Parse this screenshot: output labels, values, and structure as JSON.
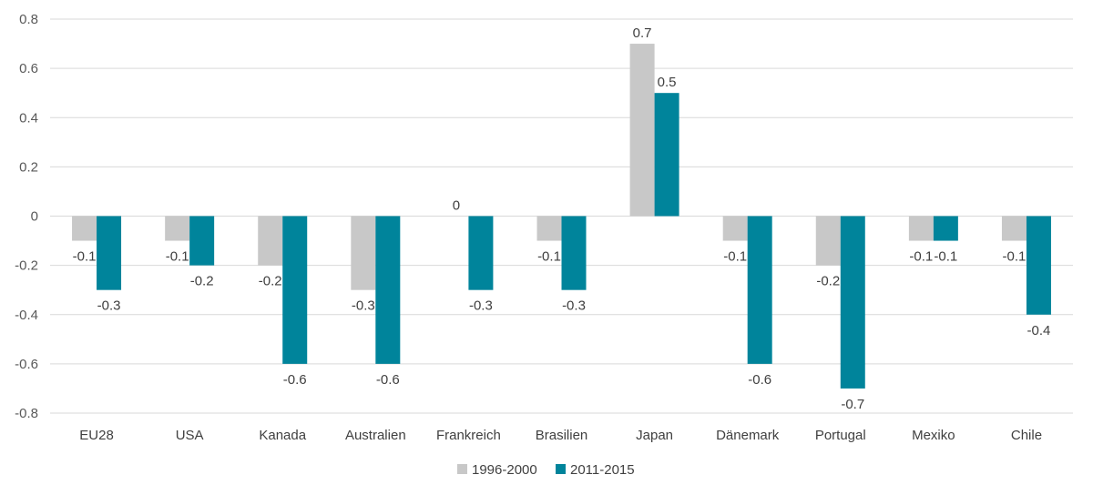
{
  "chart_data": {
    "type": "bar",
    "categories": [
      "EU28",
      "USA",
      "Kanada",
      "Australien",
      "Frankreich",
      "Brasilien",
      "Japan",
      "Dänemark",
      "Portugal",
      "Mexiko",
      "Chile"
    ],
    "series": [
      {
        "name": "1996-2000",
        "color": "#c8c8c8",
        "values": [
          -0.1,
          -0.1,
          -0.2,
          -0.3,
          0,
          -0.1,
          0.7,
          -0.1,
          -0.2,
          -0.1,
          -0.1
        ],
        "labels": [
          "-0.1",
          "-0.1",
          "-0.2",
          "-0.3",
          "0",
          "-0.1",
          "0.7",
          "-0.1",
          "-0.2",
          "-0.1",
          "-0.1"
        ]
      },
      {
        "name": "2011-2015",
        "color": "#00849b",
        "values": [
          -0.3,
          -0.2,
          -0.6,
          -0.6,
          -0.3,
          -0.3,
          0.5,
          -0.6,
          -0.7,
          -0.1,
          -0.4
        ],
        "labels": [
          "-0.3",
          "-0.2",
          "-0.6",
          "-0.6",
          "-0.3",
          "-0.3",
          "0.5",
          "-0.6",
          "-0.7",
          "-0.1",
          "-0.4"
        ]
      }
    ],
    "yticks": [
      "0.8",
      "0.6",
      "0.4",
      "0.2",
      "0",
      "-0.2",
      "-0.4",
      "-0.6",
      "-0.8"
    ],
    "ylim": [
      -0.8,
      0.8
    ],
    "grid": true,
    "legend_position": "bottom",
    "title": "",
    "xlabel": "",
    "ylabel": ""
  }
}
